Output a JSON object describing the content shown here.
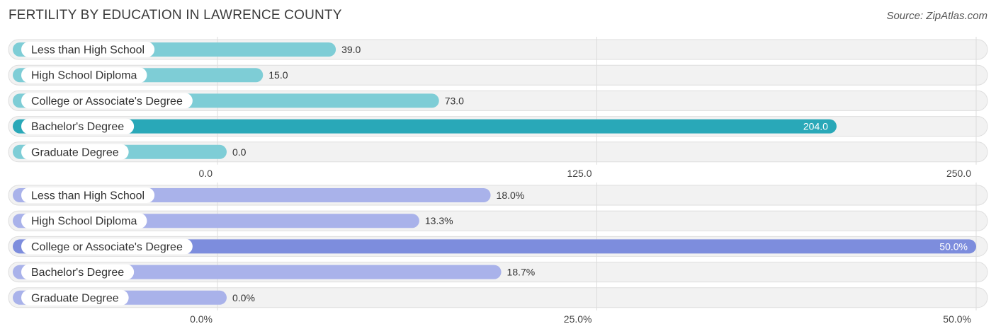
{
  "title": "FERTILITY BY EDUCATION IN LAWRENCE COUNTY",
  "source": "Source: ZipAtlas.com",
  "chart_data": [
    {
      "type": "bar",
      "orientation": "horizontal",
      "categories": [
        "Less than High School",
        "High School Diploma",
        "College or Associate's Degree",
        "Bachelor's Degree",
        "Graduate Degree"
      ],
      "values": [
        39.0,
        15.0,
        73.0,
        204.0,
        0.0
      ],
      "value_labels": [
        "39.0",
        "15.0",
        "73.0",
        "204.0",
        "0.0"
      ],
      "xlim": [
        0,
        250
      ],
      "ticks": [
        0,
        125,
        250
      ],
      "tick_labels": [
        "0.0",
        "125.0",
        "250.0"
      ],
      "bar_color": "#7ecdd6",
      "highlight_color": "#29a8b8",
      "highlight_index": 3,
      "grid": true
    },
    {
      "type": "bar",
      "orientation": "horizontal",
      "categories": [
        "Less than High School",
        "High School Diploma",
        "College or Associate's Degree",
        "Bachelor's Degree",
        "Graduate Degree"
      ],
      "values": [
        18.0,
        13.3,
        50.0,
        18.7,
        0.0
      ],
      "value_labels": [
        "18.0%",
        "13.3%",
        "50.0%",
        "18.7%",
        "0.0%"
      ],
      "xlim": [
        0,
        50
      ],
      "ticks": [
        0,
        25,
        50
      ],
      "tick_labels": [
        "0.0%",
        "25.0%",
        "50.0%"
      ],
      "bar_color": "#a9b2ea",
      "highlight_color": "#7d8ddd",
      "highlight_index": 2,
      "grid": true
    }
  ]
}
